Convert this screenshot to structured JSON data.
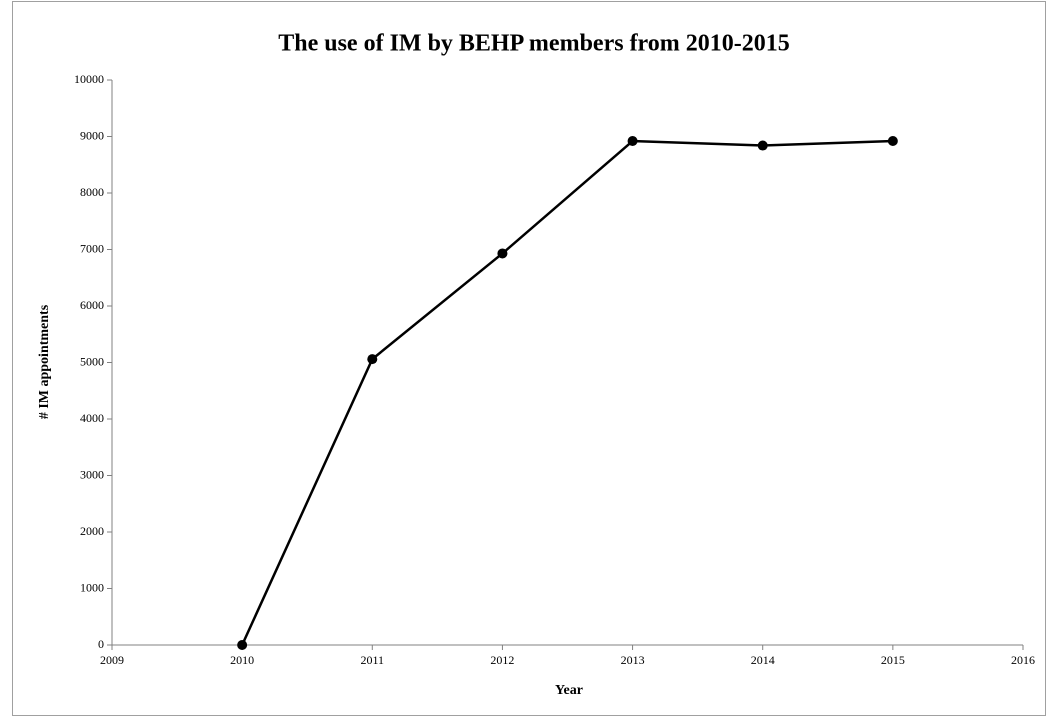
{
  "chart_data": {
    "type": "line",
    "title": "The use of IM by BEHP members from 2010-2015",
    "x_label": "Year",
    "y_label": "# IM appointments",
    "x": [
      2010,
      2011,
      2012,
      2013,
      2014,
      2015
    ],
    "values": [
      0,
      5060,
      6930,
      8920,
      8840,
      8920
    ],
    "color": "#000000",
    "xlim": [
      2009,
      2016
    ],
    "xticks": [
      2009,
      2010,
      2011,
      2012,
      2013,
      2014,
      2015,
      2016
    ],
    "ylim": [
      0,
      10000
    ],
    "yticks": [
      0,
      1000,
      2000,
      3000,
      4000,
      5000,
      6000,
      7000,
      8000,
      9000,
      10000
    ],
    "grid": false
  }
}
